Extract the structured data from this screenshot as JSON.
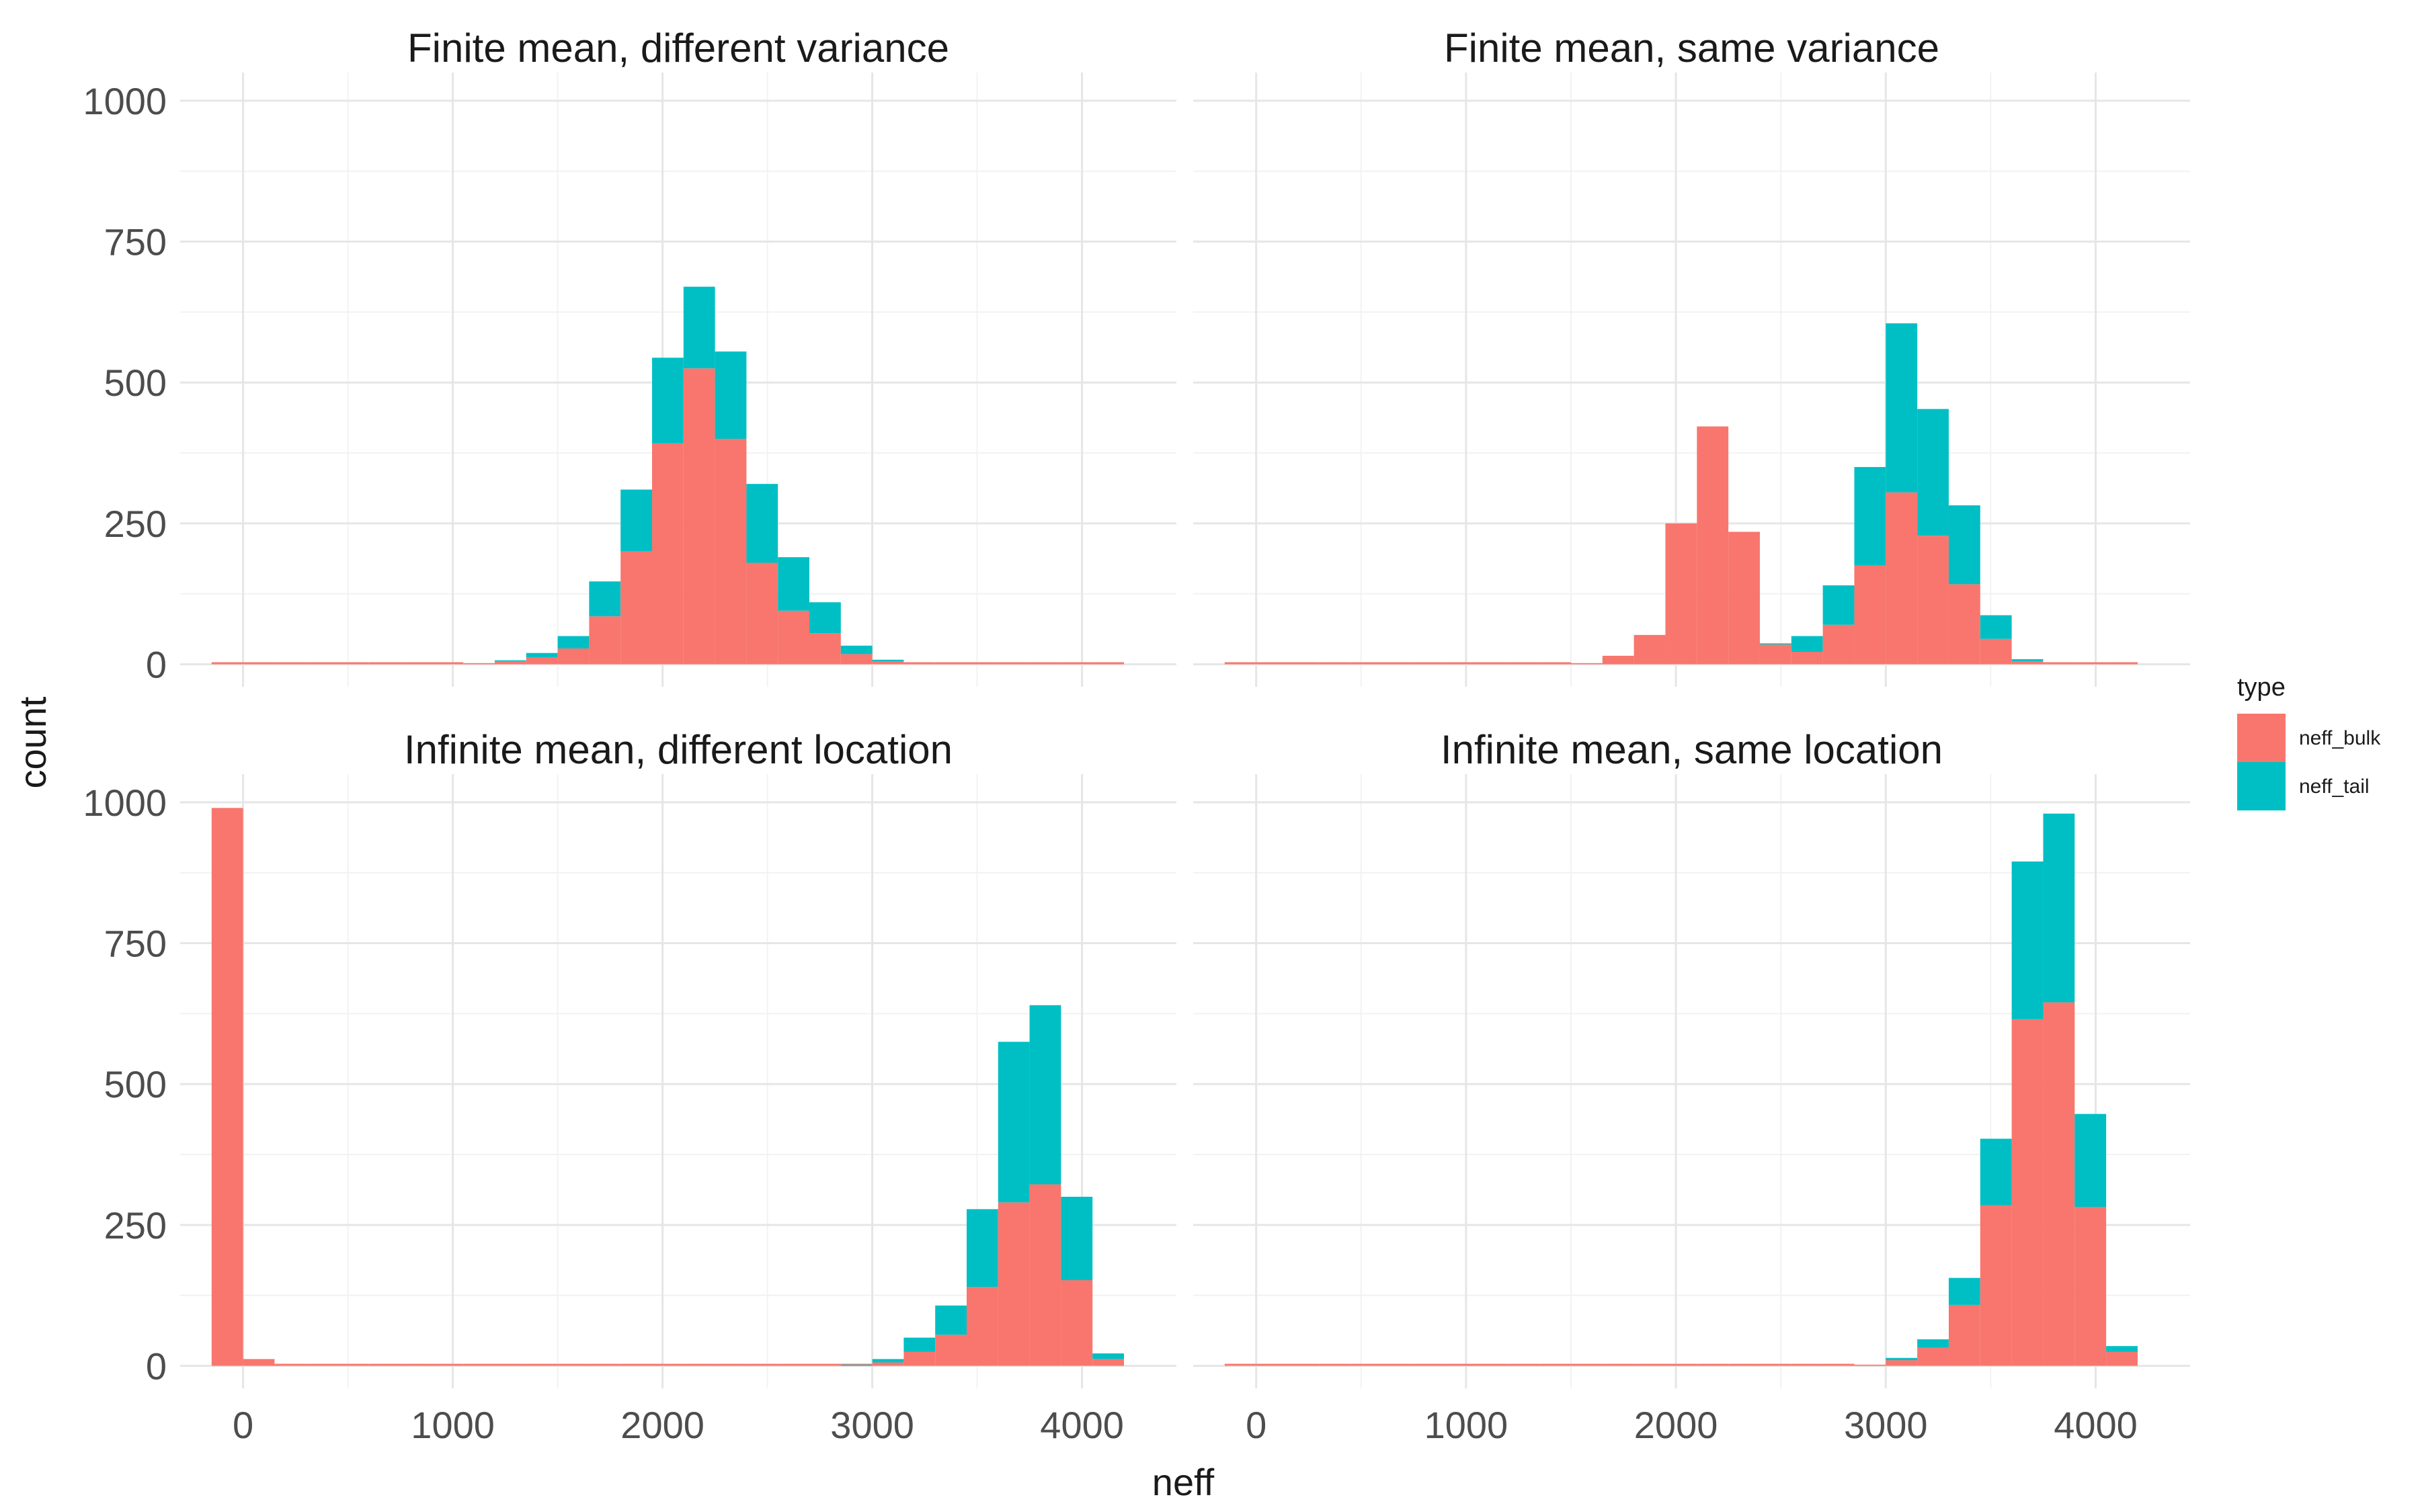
{
  "chart_data": {
    "type": "bar",
    "stacked": true,
    "xlabel": "neff",
    "ylabel": "count",
    "xlim": [
      -300,
      4450
    ],
    "ylim": [
      -40,
      1050
    ],
    "x_ticks": [
      0,
      1000,
      2000,
      3000,
      4000
    ],
    "y_ticks": [
      0,
      250,
      500,
      750,
      1000
    ],
    "bin_width": 150,
    "x": [
      -75,
      75,
      225,
      375,
      525,
      675,
      825,
      975,
      1125,
      1275,
      1425,
      1575,
      1725,
      1875,
      2025,
      2175,
      2325,
      2475,
      2625,
      2775,
      2925,
      3075,
      3225,
      3375,
      3525,
      3675,
      3825,
      3975,
      4125
    ],
    "grid": true,
    "legend": {
      "title": "type",
      "placement": "right",
      "entries": [
        {
          "label": "neff_bulk",
          "color": "#F8766D"
        },
        {
          "label": "neff_tail",
          "color": "#00BFC4"
        }
      ]
    },
    "panels": [
      {
        "title": "Finite mean, different variance",
        "show_y_ticks": true,
        "show_x_ticks": false,
        "series": [
          {
            "name": "neff_bulk",
            "values": [
              0,
              0,
              0,
              0,
              0,
              0,
              0,
              0,
              2,
              5,
              12,
              28,
              85,
              200,
              392,
              525,
              400,
              180,
              95,
              55,
              18,
              5,
              0,
              0,
              0,
              0,
              0,
              0,
              0
            ]
          },
          {
            "name": "neff_tail",
            "values": [
              0,
              0,
              0,
              0,
              0,
              0,
              0,
              0,
              0,
              2,
              8,
              22,
              62,
              110,
              152,
              145,
              155,
              140,
              95,
              55,
              15,
              3,
              0,
              0,
              0,
              0,
              0,
              0,
              0
            ]
          }
        ]
      },
      {
        "title": "Finite mean, same variance",
        "show_y_ticks": false,
        "show_x_ticks": false,
        "series": [
          {
            "name": "neff_bulk",
            "values": [
              0,
              0,
              0,
              0,
              0,
              0,
              0,
              0,
              0,
              0,
              0,
              2,
              15,
              52,
              250,
              422,
              235,
              35,
              22,
              70,
              175,
              305,
              228,
              142,
              45,
              5,
              0,
              0,
              0
            ]
          },
          {
            "name": "neff_tail",
            "values": [
              0,
              0,
              0,
              0,
              0,
              0,
              0,
              0,
              0,
              0,
              0,
              0,
              0,
              0,
              0,
              0,
              0,
              2,
              28,
              70,
              175,
              300,
              225,
              140,
              42,
              4,
              0,
              0,
              0
            ]
          }
        ]
      },
      {
        "title": "Infinite mean, different location",
        "show_y_ticks": true,
        "show_x_ticks": true,
        "series": [
          {
            "name": "neff_bulk",
            "values": [
              990,
              12,
              0,
              0,
              0,
              0,
              0,
              0,
              0,
              0,
              0,
              0,
              0,
              0,
              0,
              0,
              0,
              0,
              0,
              0,
              0,
              6,
              25,
              55,
              140,
              290,
              322,
              152,
              12
            ]
          },
          {
            "name": "neff_tail",
            "values": [
              0,
              0,
              0,
              0,
              0,
              0,
              0,
              0,
              0,
              0,
              0,
              0,
              0,
              0,
              0,
              0,
              0,
              0,
              0,
              0,
              2,
              6,
              25,
              52,
              138,
              285,
              318,
              148,
              10
            ]
          }
        ]
      },
      {
        "title": "Infinite mean, same location",
        "show_y_ticks": false,
        "show_x_ticks": true,
        "series": [
          {
            "name": "neff_bulk",
            "values": [
              0,
              0,
              0,
              0,
              0,
              0,
              0,
              0,
              0,
              0,
              0,
              0,
              0,
              0,
              0,
              0,
              0,
              0,
              0,
              0,
              2,
              10,
              32,
              108,
              285,
              615,
              645,
              282,
              25
            ]
          },
          {
            "name": "neff_tail",
            "values": [
              0,
              0,
              0,
              0,
              0,
              0,
              0,
              0,
              0,
              0,
              0,
              0,
              0,
              0,
              0,
              0,
              0,
              0,
              0,
              0,
              0,
              4,
              15,
              48,
              118,
              280,
              335,
              165,
              10
            ]
          }
        ]
      }
    ]
  }
}
